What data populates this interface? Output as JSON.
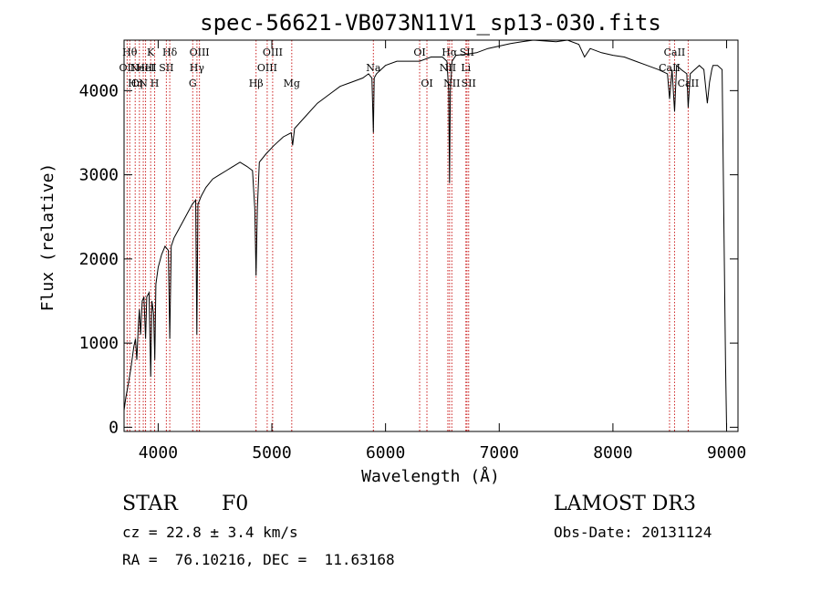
{
  "chart_data": {
    "type": "line",
    "title": "spec-56621-VB073N11V1_sp13-030.fits",
    "xlabel": "Wavelength (Å)",
    "ylabel": "Flux (relative)",
    "xlim": [
      3700,
      9100
    ],
    "ylim": [
      -50,
      4600
    ],
    "x_ticks": [
      4000,
      5000,
      6000,
      7000,
      8000,
      9000
    ],
    "y_ticks": [
      0,
      1000,
      2000,
      3000,
      4000
    ],
    "series": [
      {
        "name": "flux",
        "x": [
          3700,
          3715,
          3735,
          3760,
          3785,
          3800,
          3812,
          3825,
          3835,
          3845,
          3860,
          3875,
          3889,
          3900,
          3920,
          3934,
          3945,
          3960,
          3970,
          3980,
          4000,
          4030,
          4060,
          4090,
          4102,
          4115,
          4140,
          4180,
          4220,
          4260,
          4300,
          4330,
          4340,
          4350,
          4380,
          4420,
          4480,
          4540,
          4600,
          4660,
          4720,
          4780,
          4830,
          4850,
          4861,
          4872,
          4890,
          4950,
          5020,
          5100,
          5170,
          5183,
          5200,
          5300,
          5400,
          5500,
          5600,
          5700,
          5800,
          5850,
          5880,
          5893,
          5900,
          5920,
          6000,
          6100,
          6200,
          6300,
          6400,
          6500,
          6540,
          6556,
          6563,
          6570,
          6585,
          6620,
          6700,
          6800,
          6900,
          7000,
          7100,
          7200,
          7300,
          7400,
          7500,
          7600,
          7700,
          7750,
          7800,
          7900,
          8000,
          8100,
          8200,
          8300,
          8400,
          8480,
          8498,
          8520,
          8542,
          8560,
          8600,
          8650,
          8662,
          8680,
          8720,
          8760,
          8800,
          8830,
          8850,
          8870,
          8880,
          8920,
          8960,
          8980,
          8990,
          9000
        ],
        "values": [
          200,
          350,
          500,
          700,
          950,
          1050,
          800,
          1200,
          1400,
          1100,
          1500,
          1550,
          1050,
          1550,
          1600,
          600,
          1500,
          1350,
          800,
          1700,
          1900,
          2050,
          2150,
          2100,
          1050,
          2150,
          2250,
          2350,
          2450,
          2550,
          2650,
          2700,
          1100,
          2650,
          2750,
          2850,
          2950,
          3000,
          3050,
          3100,
          3150,
          3100,
          3050,
          2600,
          1800,
          2600,
          3150,
          3250,
          3350,
          3450,
          3500,
          3350,
          3550,
          3700,
          3850,
          3950,
          4050,
          4100,
          4150,
          4200,
          4150,
          3500,
          4150,
          4200,
          4300,
          4350,
          4350,
          4350,
          4400,
          4400,
          4350,
          4000,
          2900,
          4000,
          4350,
          4420,
          4430,
          4450,
          4500,
          4530,
          4560,
          4580,
          4600,
          4590,
          4580,
          4600,
          4550,
          4400,
          4500,
          4450,
          4420,
          4400,
          4350,
          4300,
          4250,
          4200,
          3900,
          4250,
          3750,
          4300,
          4250,
          4200,
          3800,
          4200,
          4250,
          4300,
          4250,
          3850,
          4100,
          4250,
          4300,
          4300,
          4250,
          2000,
          800,
          0
        ]
      }
    ],
    "line_markers": [
      {
        "wavelength": 3727,
        "label": "OII",
        "row": 2
      },
      {
        "wavelength": 3750,
        "label": "Hθ",
        "row": 1
      },
      {
        "wavelength": 3798,
        "label": "Hη",
        "row": 3
      },
      {
        "wavelength": 3835,
        "label": "CN",
        "row": 3
      },
      {
        "wavelength": 3869,
        "label": "NeIII",
        "row": 2
      },
      {
        "wavelength": 3889,
        "label": "HeI",
        "row": 2
      },
      {
        "wavelength": 3934,
        "label": "K",
        "row": 1
      },
      {
        "wavelength": 3969,
        "label": "H",
        "row": 3
      },
      {
        "wavelength": 4072,
        "label": "SII",
        "row": 2
      },
      {
        "wavelength": 4102,
        "label": "Hδ",
        "row": 1
      },
      {
        "wavelength": 4304,
        "label": "G",
        "row": 3
      },
      {
        "wavelength": 4341,
        "label": "Hγ",
        "row": 2
      },
      {
        "wavelength": 4363,
        "label": "OIII",
        "row": 1
      },
      {
        "wavelength": 4861,
        "label": "Hβ",
        "row": 3
      },
      {
        "wavelength": 4959,
        "label": "OIII",
        "row": 2
      },
      {
        "wavelength": 5007,
        "label": "OIII",
        "row": 1
      },
      {
        "wavelength": 5175,
        "label": "Mg",
        "row": 3
      },
      {
        "wavelength": 5893,
        "label": "Na",
        "row": 2
      },
      {
        "wavelength": 6300,
        "label": "OI",
        "row": 1
      },
      {
        "wavelength": 6364,
        "label": "OI",
        "row": 3
      },
      {
        "wavelength": 6548,
        "label": "NII",
        "row": 2
      },
      {
        "wavelength": 6563,
        "label": "Hα",
        "row": 1
      },
      {
        "wavelength": 6583,
        "label": "NII",
        "row": 3
      },
      {
        "wavelength": 6707,
        "label": "Li",
        "row": 2
      },
      {
        "wavelength": 6716,
        "label": "SII",
        "row": 1
      },
      {
        "wavelength": 6731,
        "label": "SII",
        "row": 3
      },
      {
        "wavelength": 8498,
        "label": "CaII",
        "row": 2
      },
      {
        "wavelength": 8542,
        "label": "CaII",
        "row": 1
      },
      {
        "wavelength": 8662,
        "label": "CaII",
        "row": 3
      }
    ],
    "line_color": "#cc2222",
    "grid": false
  },
  "info": {
    "object_class": "STAR",
    "subclass": "F0",
    "survey": "LAMOST DR3",
    "redshift": "cz = 22.8 ± 3.4 km/s",
    "obs_date": "Obs-Date: 20131124",
    "coords": "RA =  76.10216, DEC =  11.63168"
  }
}
